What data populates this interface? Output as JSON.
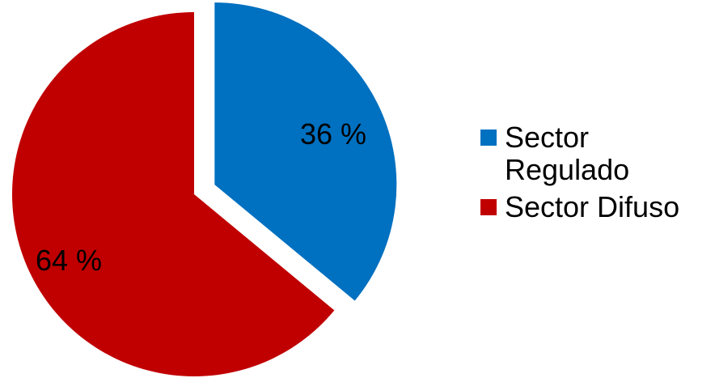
{
  "chart_data": {
    "type": "pie",
    "categories": [
      "Sector Regulado",
      "Sector Difuso"
    ],
    "values": [
      36,
      64
    ],
    "labels": [
      "36 %",
      "64 %"
    ],
    "colors": [
      "#0070C0",
      "#C00000"
    ],
    "exploded": [
      true,
      false
    ],
    "legend_position": "right"
  },
  "legend": [
    {
      "label": "Sector Regulado",
      "color": "#0070C0"
    },
    {
      "label": "Sector Difuso",
      "color": "#C00000"
    }
  ]
}
